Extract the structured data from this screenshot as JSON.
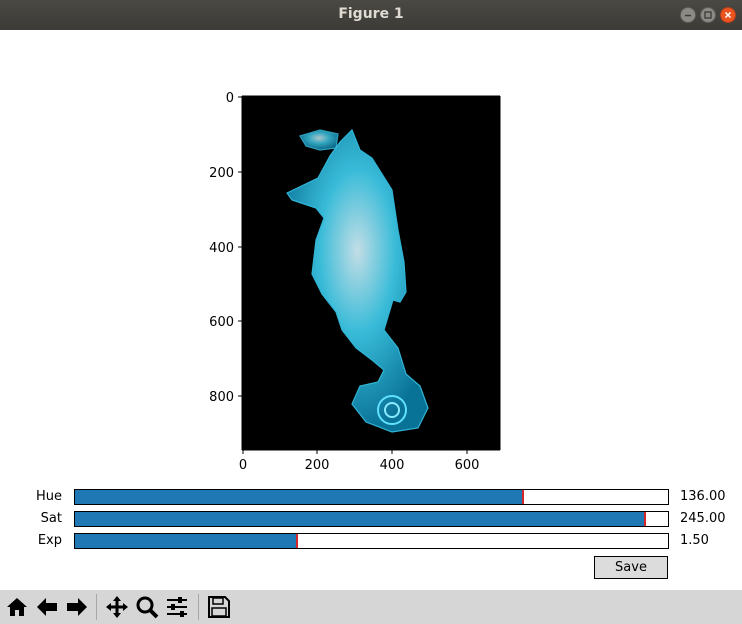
{
  "window": {
    "title": "Figure 1"
  },
  "plot": {
    "image_description": "seahorse",
    "x_ticks": [
      "0",
      "200",
      "400",
      "600"
    ],
    "y_ticks": [
      "0",
      "200",
      "400",
      "600",
      "800"
    ]
  },
  "sliders": [
    {
      "label": "Hue",
      "value": "136.00",
      "fraction": 0.755
    },
    {
      "label": "Sat",
      "value": "245.00",
      "fraction": 0.961
    },
    {
      "label": "Exp",
      "value": "1.50",
      "fraction": 0.375
    }
  ],
  "save_button": {
    "label": "Save"
  },
  "toolbar": {
    "icons": [
      "home-icon",
      "back-arrow-icon",
      "forward-arrow-icon",
      "pan-icon",
      "zoom-icon",
      "configure-subplots-icon",
      "save-icon"
    ]
  },
  "colors": {
    "slider_fill": "#1f77b4",
    "slider_marker": "#d62728",
    "seahorse": "#2ec8ec"
  }
}
